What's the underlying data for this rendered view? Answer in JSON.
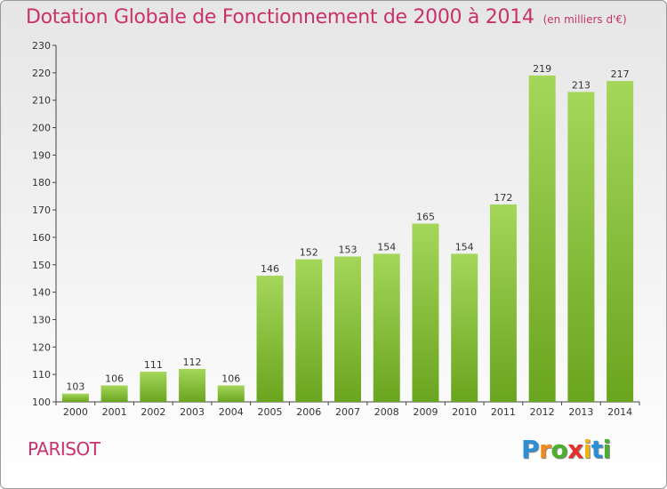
{
  "title": "Dotation Globale de Fonctionnement de 2000 à 2014",
  "unit": "(en milliers d'€)",
  "commune": "PARISOT",
  "logo": {
    "text": "Proxiti",
    "letters": [
      "P",
      "r",
      "o",
      "x",
      "i",
      "t",
      "i"
    ],
    "colors": [
      "#2b8fd6",
      "#f08a1c",
      "#4caf2b",
      "#e8302a",
      "#f0b416",
      "#2b8fd6",
      "#4caf2b"
    ]
  },
  "colors": {
    "bar_top": "#a4d65a",
    "bar_bottom": "#6aa51f",
    "title": "#c8326a"
  },
  "chart_data": {
    "type": "bar",
    "categories": [
      "2000",
      "2001",
      "2002",
      "2003",
      "2004",
      "2005",
      "2006",
      "2007",
      "2008",
      "2009",
      "2010",
      "2011",
      "2012",
      "2013",
      "2014"
    ],
    "values": [
      103,
      106,
      111,
      112,
      106,
      146,
      152,
      153,
      154,
      165,
      154,
      172,
      219,
      213,
      217
    ],
    "ylim": [
      100,
      230
    ],
    "yticks": [
      100,
      110,
      120,
      130,
      140,
      150,
      160,
      170,
      180,
      190,
      200,
      210,
      220,
      230
    ],
    "title": "Dotation Globale de Fonctionnement de 2000 à 2014",
    "xlabel": "",
    "ylabel": "",
    "grid": false
  }
}
